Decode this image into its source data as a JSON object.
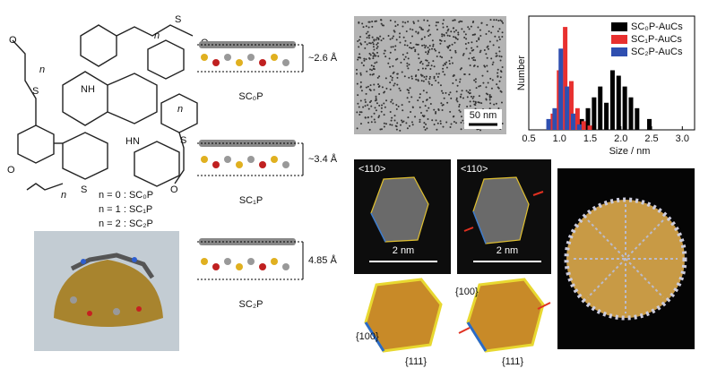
{
  "chart_data": {
    "type": "bar",
    "xlabel": "Size / nm",
    "ylabel": "Number",
    "xlim": [
      0.5,
      3.2
    ],
    "ylim": [
      0,
      105
    ],
    "xticks": [
      0.5,
      {
        "value": 1.0,
        "label": "1.0"
      },
      1.5,
      {
        "value": 2.0,
        "label": "2.0"
      },
      2.5,
      {
        "value": 3.0,
        "label": "3.0"
      }
    ],
    "series": [
      {
        "name": "SC₀P-AuCs",
        "color": "#000000",
        "x": [
          1.4,
          1.5,
          1.6,
          1.7,
          1.8,
          1.9,
          2.0,
          2.1,
          2.2,
          2.3,
          2.5
        ],
        "values": [
          10,
          20,
          30,
          40,
          25,
          55,
          50,
          40,
          30,
          20,
          10
        ]
      },
      {
        "name": "SC₁P-AuCs",
        "color": "#e8302f",
        "x": [
          0.9,
          1.0,
          1.1,
          1.2,
          1.3,
          1.4,
          1.5
        ],
        "values": [
          15,
          55,
          95,
          45,
          20,
          8,
          4
        ]
      },
      {
        "name": "SC₂P-AuCs",
        "color": "#2f4fb0",
        "x": [
          0.8,
          0.9,
          1.0,
          1.1,
          1.2,
          1.3
        ],
        "values": [
          10,
          20,
          75,
          40,
          15,
          5
        ]
      }
    ]
  },
  "figure": {
    "molecule_labels": [
      "NH",
      "HN",
      "S",
      "S",
      "S",
      "S",
      "O",
      "O",
      "O",
      "O",
      "n",
      "n",
      "n",
      "n"
    ],
    "n_legend": [
      "n = 0 : SC₀P",
      "n = 1 : SC₁P",
      "n = 2 : SC₂P"
    ],
    "side_views": [
      {
        "name": "SC₀P",
        "distance": "~2.6 Å"
      },
      {
        "name": "SC₁P",
        "distance": "~3.4 Å"
      },
      {
        "name": "SC₂P",
        "distance": "4.85 Å"
      }
    ],
    "tem_scale": "50 nm",
    "hrtem": [
      {
        "direction": "<110>",
        "scale": "2 nm"
      },
      {
        "direction": "<110>",
        "scale": "2 nm"
      }
    ],
    "facets": [
      {
        "top": "{100}",
        "bottom": "{111}"
      },
      {
        "top": "{100}",
        "bottom": "{111}"
      }
    ]
  }
}
